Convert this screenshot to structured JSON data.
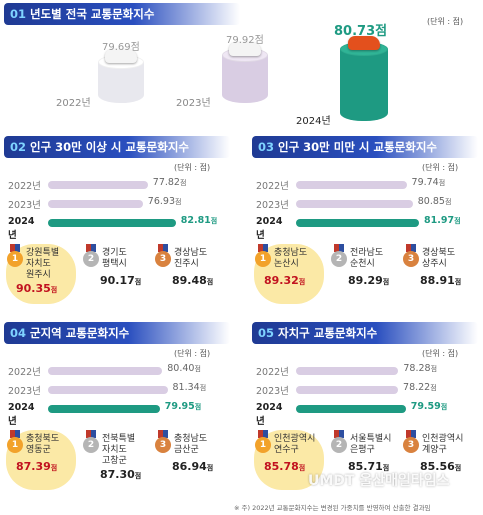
{
  "footnote": "※ 주) 2022년 교통문화지수는 변경된 가중치를 반영하여 산출한 결과임",
  "watermark": "UMDT 울산매일타임스",
  "colors": {
    "header": "#2a4fbf",
    "current": "#1e9a82",
    "past": "#d9cde3",
    "gold": "#f2a22b",
    "silver": "#b5b5b5",
    "bronze": "#d9823f"
  },
  "chart_data": [
    {
      "type": "bar",
      "id": "01",
      "title": "년도별 전국 교통문화지수",
      "unit": "(단위 : 점)",
      "categories": [
        "2022년",
        "2023년",
        "2024년"
      ],
      "values": [
        79.69,
        79.92,
        80.73
      ],
      "value_labels": [
        "79.69점",
        "79.92점",
        "80.73점"
      ]
    },
    {
      "type": "bar",
      "id": "02",
      "title": "인구 30만 이상 시 교통문화지수",
      "unit": "(단위 : 점)",
      "categories": [
        "2022년",
        "2023년",
        "2024년"
      ],
      "values": [
        77.82,
        76.93,
        82.81
      ],
      "value_labels": [
        "77.82",
        "76.93",
        "82.81"
      ],
      "ranking": [
        {
          "rank": "1",
          "name": "강원특별\n자치도\n원주시",
          "score": "90.35"
        },
        {
          "rank": "2",
          "name": "경기도\n평택시",
          "score": "90.17"
        },
        {
          "rank": "3",
          "name": "경상남도\n진주시",
          "score": "89.48"
        }
      ]
    },
    {
      "type": "bar",
      "id": "03",
      "title": "인구 30만 미만 시 교통문화지수",
      "unit": "(단위 : 점)",
      "categories": [
        "2022년",
        "2023년",
        "2024년"
      ],
      "values": [
        79.74,
        80.85,
        81.97
      ],
      "value_labels": [
        "79.74",
        "80.85",
        "81.97"
      ],
      "ranking": [
        {
          "rank": "1",
          "name": "충청남도\n논산시",
          "score": "89.32"
        },
        {
          "rank": "2",
          "name": "전라남도\n순천시",
          "score": "89.29"
        },
        {
          "rank": "3",
          "name": "경상북도\n상주시",
          "score": "88.91"
        }
      ]
    },
    {
      "type": "bar",
      "id": "04",
      "title": "군지역 교통문화지수",
      "unit": "(단위 : 점)",
      "categories": [
        "2022년",
        "2023년",
        "2024년"
      ],
      "values": [
        80.4,
        81.34,
        79.95
      ],
      "value_labels": [
        "80.40",
        "81.34",
        "79.95"
      ],
      "ranking": [
        {
          "rank": "1",
          "name": "충청북도\n영동군",
          "score": "87.39"
        },
        {
          "rank": "2",
          "name": "전북특별\n자치도\n고창군",
          "score": "87.30"
        },
        {
          "rank": "3",
          "name": "충청남도\n금산군",
          "score": "86.94"
        }
      ]
    },
    {
      "type": "bar",
      "id": "05",
      "title": "자치구 교통문화지수",
      "unit": "(단위 : 점)",
      "categories": [
        "2022년",
        "2023년",
        "2024년"
      ],
      "values": [
        78.28,
        78.22,
        79.59
      ],
      "value_labels": [
        "78.28",
        "78.22",
        "79.59"
      ],
      "ranking": [
        {
          "rank": "1",
          "name": "인천광역시\n연수구",
          "score": "85.78"
        },
        {
          "rank": "2",
          "name": "서울특별시\n은평구",
          "score": "85.71"
        },
        {
          "rank": "3",
          "name": "인천광역시\n계양구",
          "score": "85.56"
        }
      ]
    }
  ],
  "point_suffix": "점"
}
